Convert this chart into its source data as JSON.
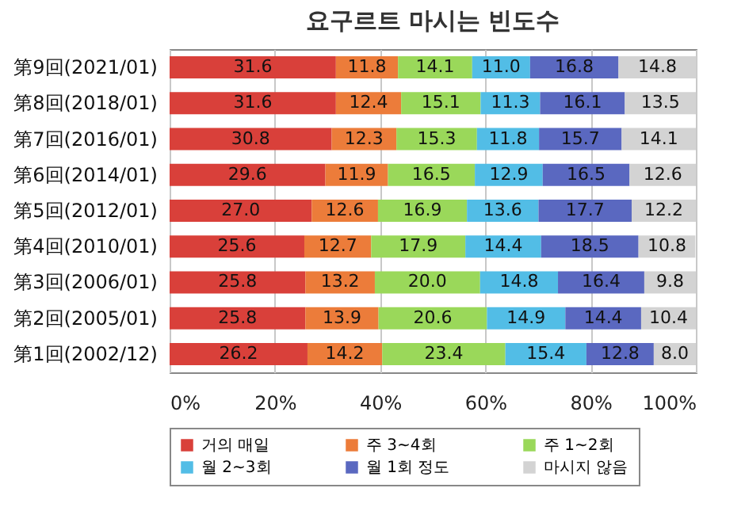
{
  "chart_data": {
    "type": "bar",
    "orientation": "horizontal",
    "stacked": true,
    "title": "요구르트 마시는 빈도수",
    "categories": [
      "第9回(2021/01)",
      "第8回(2018/01)",
      "第7回(2016/01)",
      "第6回(2014/01)",
      "第5回(2012/01)",
      "第4回(2010/01)",
      "第3回(2006/01)",
      "第2回(2005/01)",
      "第1回(2002/12)"
    ],
    "series": [
      {
        "name": "거의 매일",
        "color": "#d9403a",
        "values": [
          31.6,
          31.6,
          30.8,
          29.6,
          27.0,
          25.6,
          25.8,
          25.8,
          26.2
        ],
        "value_labels": [
          "31.6",
          "31.6",
          "30.8",
          "29.6",
          "27.0",
          "25.6",
          "25.8",
          "25.8",
          "26.2"
        ]
      },
      {
        "name": "주 3~4회",
        "color": "#ec7c3a",
        "values": [
          11.8,
          12.4,
          12.3,
          11.9,
          12.6,
          12.7,
          13.2,
          13.9,
          14.2
        ],
        "value_labels": [
          "11.8",
          "12.4",
          "12.3",
          "11.9",
          "12.6",
          "12.7",
          "13.2",
          "13.9",
          "14.2"
        ]
      },
      {
        "name": "주 1~2회",
        "color": "#9ad85a",
        "values": [
          14.1,
          15.1,
          15.3,
          16.5,
          16.9,
          17.9,
          20.0,
          20.6,
          23.4
        ],
        "value_labels": [
          "14.1",
          "15.1",
          "15.3",
          "16.5",
          "16.9",
          "17.9",
          "20.0",
          "20.6",
          "23.4"
        ]
      },
      {
        "name": "월 2~3회",
        "color": "#52bde6",
        "values": [
          11.0,
          11.3,
          11.8,
          12.9,
          13.6,
          14.4,
          14.8,
          14.9,
          15.4
        ],
        "value_labels": [
          "11.0",
          "11.3",
          "11.8",
          "12.9",
          "13.6",
          "14.4",
          "14.8",
          "14.9",
          "15.4"
        ]
      },
      {
        "name": "월 1회 정도",
        "color": "#5a68c0",
        "values": [
          16.8,
          16.1,
          15.7,
          16.5,
          17.7,
          18.5,
          16.4,
          14.4,
          12.8
        ],
        "value_labels": [
          "16.8",
          "16.1",
          "15.7",
          "16.5",
          "17.7",
          "18.5",
          "16.4",
          "14.4",
          "12.8"
        ]
      },
      {
        "name": "마시지 않음",
        "color": "#d3d3d3",
        "values": [
          14.8,
          13.5,
          14.1,
          12.6,
          12.2,
          10.8,
          9.8,
          10.4,
          8.0
        ],
        "value_labels": [
          "14.8",
          "13.5",
          "14.1",
          "12.6",
          "12.2",
          "10.8",
          "9.8",
          "10.4",
          "8.0"
        ]
      }
    ],
    "xlim": [
      0,
      100
    ],
    "xticks": [
      {
        "value": 0,
        "label": "0%"
      },
      {
        "value": 20,
        "label": "20%"
      },
      {
        "value": 40,
        "label": "40%"
      },
      {
        "value": 60,
        "label": "60%"
      },
      {
        "value": 80,
        "label": "80%"
      },
      {
        "value": 100,
        "label": "100%"
      }
    ],
    "grid": "x",
    "legend": "bottom"
  }
}
